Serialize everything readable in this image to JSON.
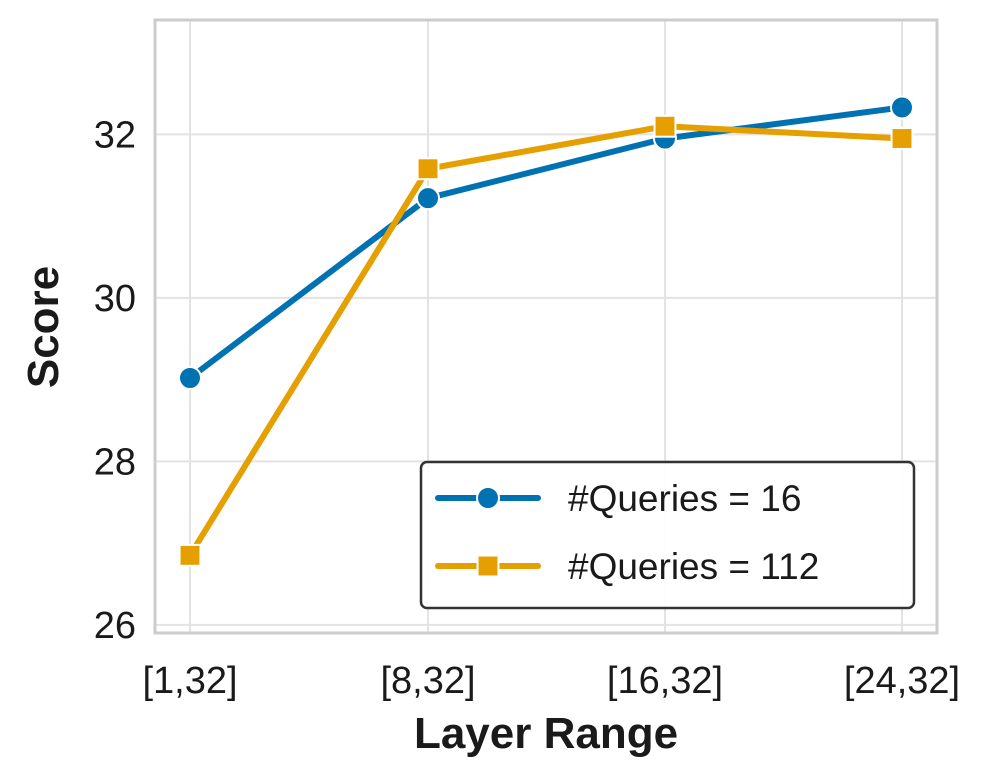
{
  "chart_data": {
    "type": "line",
    "title": "",
    "xlabel": "Layer Range",
    "ylabel": "Score",
    "categories": [
      "[1,32]",
      "[8,32]",
      "[16,32]",
      "[24,32]"
    ],
    "ylim": [
      25.9,
      33.4
    ],
    "yticks": [
      26,
      28,
      30,
      32
    ],
    "grid": true,
    "legend_position": "lower-right",
    "series": [
      {
        "name": "#Queries = 16",
        "values": [
          29.02,
          31.22,
          31.95,
          32.33
        ],
        "color": "#0072b2",
        "marker": "circle"
      },
      {
        "name": "#Queries = 112",
        "values": [
          26.85,
          31.58,
          32.1,
          31.95
        ],
        "color": "#e69f00",
        "marker": "square"
      }
    ]
  }
}
